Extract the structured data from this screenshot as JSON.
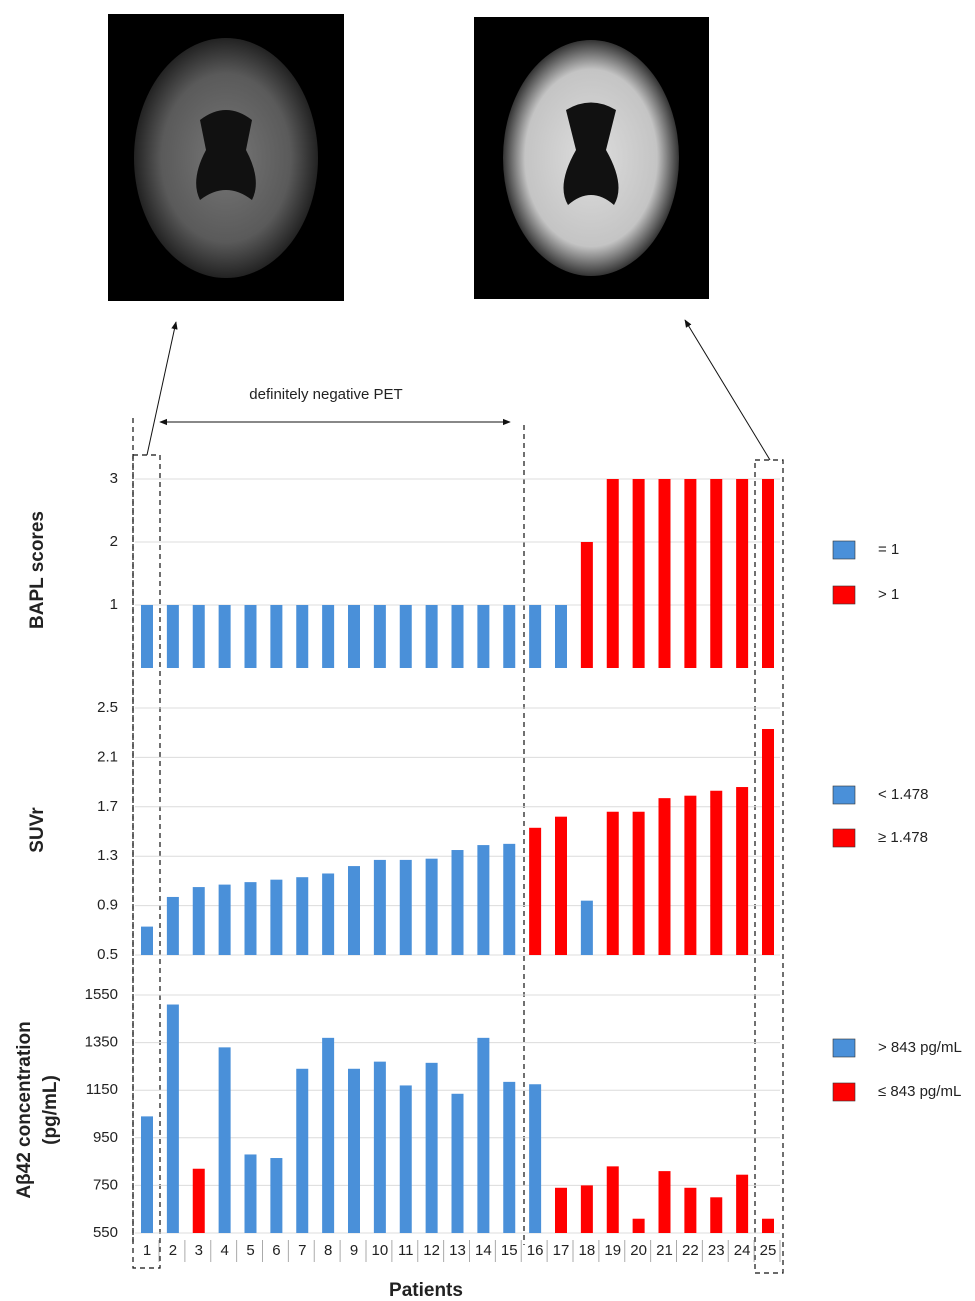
{
  "chart_data": [
    {
      "type": "bar",
      "y_label": [
        "BAPL scores"
      ],
      "annotation": "definitely negative PET",
      "categories": [
        "1",
        "2",
        "3",
        "4",
        "5",
        "6",
        "7",
        "8",
        "9",
        "10",
        "11",
        "12",
        "13",
        "14",
        "15",
        "16",
        "17",
        "18",
        "19",
        "20",
        "21",
        "22",
        "23",
        "24",
        "25"
      ],
      "series": [
        {
          "name": "= 1",
          "color": "#4a90d9",
          "values": [
            1,
            1,
            1,
            1,
            1,
            1,
            1,
            1,
            1,
            1,
            1,
            1,
            1,
            1,
            1,
            1,
            1,
            null,
            null,
            null,
            null,
            null,
            null,
            null,
            null
          ]
        },
        {
          "name": "> 1",
          "color": "#ff0000",
          "values": [
            null,
            null,
            null,
            null,
            null,
            null,
            null,
            null,
            null,
            null,
            null,
            null,
            null,
            null,
            null,
            null,
            null,
            2,
            3,
            3,
            3,
            3,
            3,
            3,
            3
          ]
        }
      ],
      "ylim": [
        0,
        3
      ],
      "yticks": [
        1,
        2,
        3
      ],
      "grid": true
    },
    {
      "type": "bar",
      "y_label": [
        "SUVr"
      ],
      "categories": [
        "1",
        "2",
        "3",
        "4",
        "5",
        "6",
        "7",
        "8",
        "9",
        "10",
        "11",
        "12",
        "13",
        "14",
        "15",
        "16",
        "17",
        "18",
        "19",
        "20",
        "21",
        "22",
        "23",
        "24",
        "25"
      ],
      "series": [
        {
          "name": "< 1.478",
          "color": "#4a90d9",
          "values": [
            0.73,
            0.97,
            1.05,
            1.07,
            1.09,
            1.11,
            1.13,
            1.16,
            1.22,
            1.27,
            1.27,
            1.28,
            1.35,
            1.39,
            1.4,
            null,
            null,
            0.94,
            null,
            null,
            null,
            null,
            null,
            null,
            null
          ]
        },
        {
          "name": "≥ 1.478",
          "color": "#ff0000",
          "values": [
            null,
            null,
            null,
            null,
            null,
            null,
            null,
            null,
            null,
            null,
            null,
            null,
            null,
            null,
            null,
            1.53,
            1.62,
            null,
            1.66,
            1.66,
            1.77,
            1.79,
            1.83,
            1.86,
            2.33
          ]
        }
      ],
      "ylim": [
        0.5,
        2.5
      ],
      "yticks": [
        0.5,
        0.9,
        1.3,
        1.7,
        2.1,
        2.5
      ],
      "grid": true
    },
    {
      "type": "bar",
      "y_label": [
        "Aβ42 concentration",
        "(pg/mL)"
      ],
      "x_label": "Patients",
      "categories": [
        "1",
        "2",
        "3",
        "4",
        "5",
        "6",
        "7",
        "8",
        "9",
        "10",
        "11",
        "12",
        "13",
        "14",
        "15",
        "16",
        "17",
        "18",
        "19",
        "20",
        "21",
        "22",
        "23",
        "24",
        "25"
      ],
      "series": [
        {
          "name": "> 843 pg/mL",
          "color": "#4a90d9",
          "values": [
            1040,
            1510,
            null,
            1330,
            880,
            865,
            1240,
            1370,
            1240,
            1270,
            1170,
            1265,
            1135,
            1370,
            1185,
            1175,
            null,
            null,
            null,
            null,
            null,
            null,
            null,
            null,
            null
          ]
        },
        {
          "name": "≤ 843 pg/mL",
          "color": "#ff0000",
          "values": [
            null,
            null,
            820,
            null,
            null,
            null,
            null,
            null,
            null,
            null,
            null,
            null,
            null,
            null,
            null,
            null,
            740,
            750,
            830,
            610,
            810,
            740,
            700,
            795,
            610
          ]
        }
      ],
      "ylim": [
        550,
        1550
      ],
      "yticks": [
        550,
        750,
        950,
        1150,
        1350,
        1550
      ],
      "grid": true
    }
  ]
}
